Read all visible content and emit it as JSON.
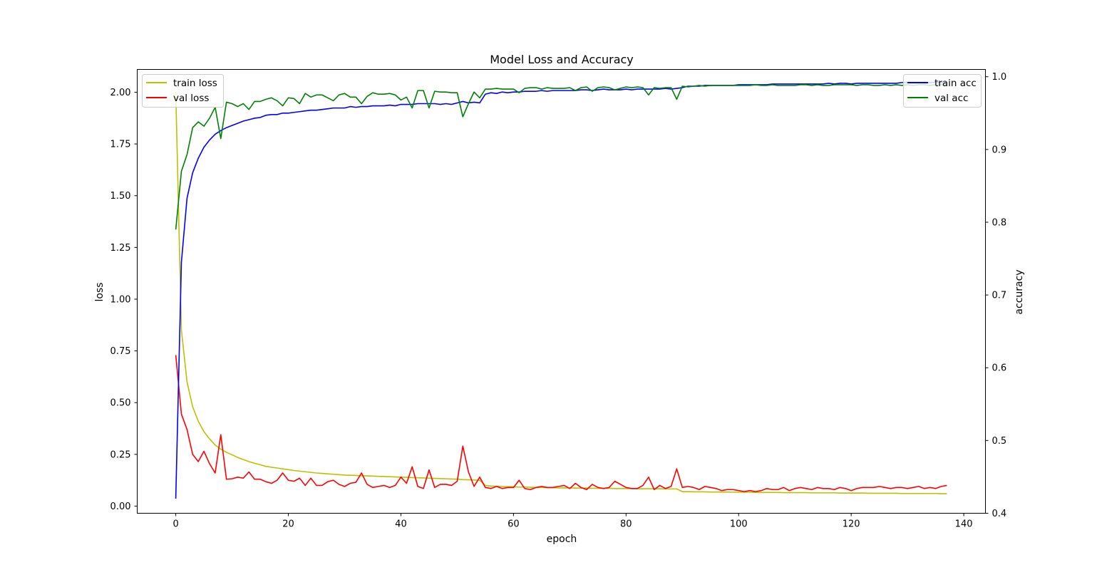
{
  "chart_data": {
    "type": "line",
    "title": "Model Loss and Accuracy",
    "xlabel": "epoch",
    "ylabel_left": "loss",
    "ylabel_right": "accuracy",
    "xlim": [
      -6.85,
      143.85
    ],
    "ylim_left": [
      -0.0345,
      2.11
    ],
    "ylim_right": [
      0.4,
      1.01
    ],
    "x_ticks": [
      "0",
      "20",
      "40",
      "60",
      "80",
      "100",
      "120",
      "140"
    ],
    "y_ticks_left": [
      "0.00",
      "0.25",
      "0.50",
      "0.75",
      "1.00",
      "1.25",
      "1.50",
      "1.75",
      "2.00"
    ],
    "y_ticks_right": [
      "0.4",
      "0.5",
      "0.6",
      "0.7",
      "0.8",
      "0.9",
      "1.0"
    ],
    "grid": false,
    "legend_left": "upper-left",
    "legend_right": "upper-right",
    "x": [
      0,
      1,
      2,
      3,
      4,
      5,
      6,
      7,
      8,
      9,
      10,
      11,
      12,
      13,
      14,
      15,
      16,
      17,
      18,
      19,
      20,
      21,
      22,
      23,
      24,
      25,
      26,
      27,
      28,
      29,
      30,
      31,
      32,
      33,
      34,
      35,
      36,
      37,
      38,
      39,
      40,
      41,
      42,
      43,
      44,
      45,
      46,
      47,
      48,
      49,
      50,
      51,
      52,
      53,
      54,
      55,
      56,
      57,
      58,
      59,
      60,
      61,
      62,
      63,
      64,
      65,
      66,
      67,
      68,
      69,
      70,
      71,
      72,
      73,
      74,
      75,
      76,
      77,
      78,
      79,
      80,
      81,
      82,
      83,
      84,
      85,
      86,
      87,
      88,
      89,
      90,
      91,
      92,
      93,
      94,
      95,
      96,
      97,
      98,
      99,
      100,
      101,
      102,
      103,
      104,
      105,
      106,
      107,
      108,
      109,
      110,
      111,
      112,
      113,
      114,
      115,
      116,
      117,
      118,
      119,
      120,
      121,
      122,
      123,
      124,
      125,
      126,
      127,
      128,
      129,
      130,
      131,
      132,
      133,
      134,
      135,
      136,
      137
    ],
    "series": [
      {
        "name": "train loss",
        "axis": "left",
        "color": "#bfbf00",
        "values": [
          2.0,
          0.85,
          0.6,
          0.48,
          0.41,
          0.36,
          0.325,
          0.295,
          0.275,
          0.26,
          0.248,
          0.235,
          0.225,
          0.215,
          0.207,
          0.2,
          0.192,
          0.188,
          0.184,
          0.18,
          0.176,
          0.172,
          0.169,
          0.166,
          0.163,
          0.16,
          0.158,
          0.156,
          0.154,
          0.152,
          0.15,
          0.149,
          0.148,
          0.147,
          0.146,
          0.145,
          0.144,
          0.143,
          0.142,
          0.141,
          0.14,
          0.139,
          0.138,
          0.137,
          0.136,
          0.135,
          0.134,
          0.133,
          0.132,
          0.131,
          0.13,
          0.128,
          0.127,
          0.126,
          0.125,
          0.1,
          0.097,
          0.096,
          0.095,
          0.094,
          0.093,
          0.092,
          0.092,
          0.091,
          0.09,
          0.09,
          0.089,
          0.089,
          0.088,
          0.088,
          0.088,
          0.087,
          0.087,
          0.087,
          0.086,
          0.086,
          0.086,
          0.086,
          0.085,
          0.085,
          0.085,
          0.085,
          0.084,
          0.084,
          0.084,
          0.084,
          0.084,
          0.083,
          0.083,
          0.083,
          0.07,
          0.07,
          0.069,
          0.069,
          0.069,
          0.068,
          0.068,
          0.068,
          0.068,
          0.067,
          0.067,
          0.067,
          0.067,
          0.066,
          0.066,
          0.066,
          0.066,
          0.066,
          0.065,
          0.065,
          0.065,
          0.065,
          0.065,
          0.064,
          0.064,
          0.064,
          0.064,
          0.064,
          0.063,
          0.063,
          0.063,
          0.063,
          0.063,
          0.062,
          0.062,
          0.062,
          0.062,
          0.062,
          0.062,
          0.061,
          0.061,
          0.061,
          0.061,
          0.061,
          0.061,
          0.061,
          0.06,
          0.06
        ]
      },
      {
        "name": "val loss",
        "axis": "left",
        "color": "#ff0000",
        "values": [
          0.73,
          0.445,
          0.37,
          0.25,
          0.215,
          0.265,
          0.205,
          0.16,
          0.345,
          0.13,
          0.132,
          0.14,
          0.135,
          0.165,
          0.13,
          0.13,
          0.118,
          0.11,
          0.125,
          0.16,
          0.125,
          0.12,
          0.135,
          0.1,
          0.135,
          0.1,
          0.1,
          0.118,
          0.125,
          0.105,
          0.095,
          0.11,
          0.115,
          0.16,
          0.105,
          0.09,
          0.095,
          0.1,
          0.09,
          0.1,
          0.14,
          0.11,
          0.19,
          0.095,
          0.085,
          0.175,
          0.09,
          0.105,
          0.105,
          0.1,
          0.12,
          0.29,
          0.165,
          0.095,
          0.14,
          0.09,
          0.085,
          0.095,
          0.085,
          0.09,
          0.09,
          0.125,
          0.085,
          0.08,
          0.09,
          0.095,
          0.09,
          0.09,
          0.095,
          0.1,
          0.085,
          0.11,
          0.09,
          0.08,
          0.105,
          0.09,
          0.085,
          0.09,
          0.12,
          0.105,
          0.09,
          0.085,
          0.085,
          0.1,
          0.14,
          0.08,
          0.1,
          0.085,
          0.095,
          0.18,
          0.09,
          0.095,
          0.09,
          0.08,
          0.095,
          0.09,
          0.085,
          0.075,
          0.08,
          0.08,
          0.075,
          0.07,
          0.075,
          0.07,
          0.075,
          0.085,
          0.08,
          0.08,
          0.09,
          0.075,
          0.085,
          0.09,
          0.085,
          0.08,
          0.09,
          0.085,
          0.085,
          0.08,
          0.09,
          0.085,
          0.075,
          0.085,
          0.09,
          0.09,
          0.09,
          0.095,
          0.09,
          0.085,
          0.09,
          0.09,
          0.085,
          0.09,
          0.095,
          0.085,
          0.09,
          0.085,
          0.095,
          0.1
        ]
      },
      {
        "name": "train acc",
        "axis": "right",
        "color": "#0000ff",
        "values": [
          0.42,
          0.745,
          0.833,
          0.868,
          0.888,
          0.903,
          0.913,
          0.921,
          0.926,
          0.93,
          0.933,
          0.936,
          0.939,
          0.941,
          0.943,
          0.944,
          0.947,
          0.948,
          0.948,
          0.95,
          0.95,
          0.951,
          0.952,
          0.953,
          0.954,
          0.954,
          0.955,
          0.956,
          0.957,
          0.957,
          0.957,
          0.959,
          0.958,
          0.959,
          0.959,
          0.96,
          0.96,
          0.96,
          0.961,
          0.96,
          0.962,
          0.962,
          0.962,
          0.963,
          0.963,
          0.963,
          0.963,
          0.962,
          0.963,
          0.962,
          0.964,
          0.966,
          0.964,
          0.965,
          0.964,
          0.976,
          0.978,
          0.977,
          0.979,
          0.978,
          0.979,
          0.979,
          0.98,
          0.98,
          0.98,
          0.981,
          0.98,
          0.981,
          0.981,
          0.981,
          0.981,
          0.981,
          0.982,
          0.982,
          0.981,
          0.982,
          0.983,
          0.982,
          0.982,
          0.982,
          0.983,
          0.982,
          0.983,
          0.983,
          0.983,
          0.983,
          0.983,
          0.984,
          0.983,
          0.984,
          0.985,
          0.987,
          0.987,
          0.987,
          0.988,
          0.988,
          0.988,
          0.988,
          0.988,
          0.988,
          0.989,
          0.989,
          0.989,
          0.989,
          0.989,
          0.989,
          0.99,
          0.99,
          0.99,
          0.99,
          0.99,
          0.99,
          0.99,
          0.99,
          0.99,
          0.99,
          0.991,
          0.99,
          0.991,
          0.991,
          0.99,
          0.991,
          0.991,
          0.991,
          0.991,
          0.991,
          0.991,
          0.991,
          0.991,
          0.992,
          0.992,
          0.992,
          0.992,
          0.992,
          0.992,
          0.992,
          0.992,
          0.992
        ]
      },
      {
        "name": "val acc",
        "axis": "right",
        "color": "#008000",
        "values": [
          0.79,
          0.87,
          0.893,
          0.93,
          0.938,
          0.932,
          0.943,
          0.958,
          0.915,
          0.965,
          0.963,
          0.959,
          0.963,
          0.955,
          0.966,
          0.966,
          0.969,
          0.971,
          0.967,
          0.96,
          0.971,
          0.97,
          0.963,
          0.977,
          0.972,
          0.975,
          0.975,
          0.971,
          0.967,
          0.975,
          0.977,
          0.972,
          0.972,
          0.963,
          0.973,
          0.978,
          0.976,
          0.976,
          0.977,
          0.975,
          0.968,
          0.972,
          0.957,
          0.981,
          0.981,
          0.957,
          0.98,
          0.979,
          0.979,
          0.978,
          0.978,
          0.945,
          0.963,
          0.979,
          0.971,
          0.983,
          0.983,
          0.984,
          0.983,
          0.983,
          0.983,
          0.978,
          0.984,
          0.985,
          0.985,
          0.983,
          0.985,
          0.984,
          0.984,
          0.984,
          0.985,
          0.981,
          0.985,
          0.986,
          0.98,
          0.985,
          0.986,
          0.985,
          0.982,
          0.984,
          0.986,
          0.985,
          0.986,
          0.985,
          0.975,
          0.985,
          0.984,
          0.985,
          0.985,
          0.969,
          0.987,
          0.986,
          0.987,
          0.988,
          0.987,
          0.988,
          0.988,
          0.988,
          0.988,
          0.988,
          0.988,
          0.988,
          0.988,
          0.989,
          0.988,
          0.988,
          0.989,
          0.988,
          0.988,
          0.988,
          0.988,
          0.989,
          0.989,
          0.988,
          0.989,
          0.988,
          0.988,
          0.989,
          0.989,
          0.989,
          0.989,
          0.988,
          0.989,
          0.989,
          0.988,
          0.988,
          0.989,
          0.988,
          0.989,
          0.988,
          0.989,
          0.988,
          0.989,
          0.989,
          0.988,
          0.989,
          0.989,
          0.989
        ]
      }
    ]
  }
}
